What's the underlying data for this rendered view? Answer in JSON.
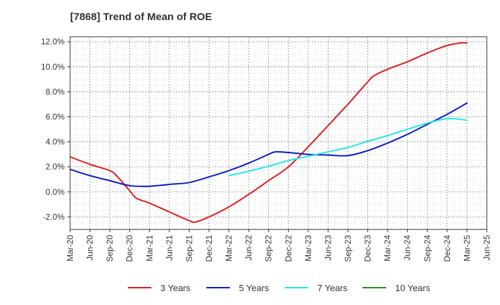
{
  "title": "[7868]  Trend of Mean of ROE",
  "chart_data": {
    "type": "line",
    "title": "[7868]  Trend of Mean of ROE",
    "xlabel": "",
    "ylabel": "",
    "x_ticks": [
      "Mar-20",
      "Jun-20",
      "Sep-20",
      "Dec-20",
      "Mar-21",
      "Jun-21",
      "Sep-21",
      "Dec-21",
      "Mar-22",
      "Jun-22",
      "Sep-22",
      "Dec-22",
      "Mar-23",
      "Jun-23",
      "Sep-23",
      "Dec-23",
      "Mar-24",
      "Jun-24",
      "Sep-24",
      "Dec-24",
      "Mar-25",
      "Jun-25"
    ],
    "y_ticks": [
      "12.0%",
      "10.0%",
      "8.0%",
      "6.0%",
      "4.0%",
      "2.0%",
      "0.0%",
      "-2.0%"
    ],
    "ylim": [
      -3.0,
      12.4
    ],
    "grid": true,
    "legend_position": "bottom",
    "series": [
      {
        "name": "3 Years",
        "color": "#e31a1c",
        "points": [
          [
            "Mar-20",
            2.8
          ],
          [
            "Jun-20",
            2.2
          ],
          [
            "Sep-20",
            1.7
          ],
          [
            "Oct-20",
            1.3
          ],
          [
            "Dec-20",
            0.1
          ],
          [
            "Jan-21",
            -0.5
          ],
          [
            "Mar-21",
            -0.9
          ],
          [
            "Jun-21",
            -1.6
          ],
          [
            "Sep-21",
            -2.3
          ],
          [
            "Oct-21",
            -2.4
          ],
          [
            "Dec-21",
            -2.0
          ],
          [
            "Mar-22",
            -1.2
          ],
          [
            "Jun-22",
            -0.2
          ],
          [
            "Sep-22",
            0.9
          ],
          [
            "Dec-22",
            2.0
          ],
          [
            "Mar-23",
            3.6
          ],
          [
            "Jun-23",
            5.3
          ],
          [
            "Sep-23",
            7.0
          ],
          [
            "Dec-23",
            8.8
          ],
          [
            "Jan-24",
            9.3
          ],
          [
            "Mar-24",
            9.8
          ],
          [
            "Jun-24",
            10.4
          ],
          [
            "Sep-24",
            11.1
          ],
          [
            "Dec-24",
            11.7
          ],
          [
            "Feb-25",
            11.9
          ],
          [
            "Mar-25",
            11.9
          ]
        ]
      },
      {
        "name": "5 Years",
        "color": "#0a1cc8",
        "points": [
          [
            "Mar-20",
            1.8
          ],
          [
            "Jun-20",
            1.3
          ],
          [
            "Sep-20",
            0.9
          ],
          [
            "Dec-20",
            0.5
          ],
          [
            "Mar-21",
            0.45
          ],
          [
            "Jun-21",
            0.6
          ],
          [
            "Sep-21",
            0.75
          ],
          [
            "Dec-21",
            1.2
          ],
          [
            "Mar-22",
            1.7
          ],
          [
            "Jun-22",
            2.3
          ],
          [
            "Sep-22",
            3.0
          ],
          [
            "Oct-22",
            3.2
          ],
          [
            "Dec-22",
            3.15
          ],
          [
            "Mar-23",
            3.0
          ],
          [
            "Jun-23",
            2.95
          ],
          [
            "Sep-23",
            2.9
          ],
          [
            "Dec-23",
            3.3
          ],
          [
            "Mar-24",
            3.9
          ],
          [
            "Jun-24",
            4.6
          ],
          [
            "Sep-24",
            5.4
          ],
          [
            "Dec-24",
            6.2
          ],
          [
            "Mar-25",
            7.1
          ]
        ]
      },
      {
        "name": "7 Years",
        "color": "#22e6ee",
        "points": [
          [
            "Mar-22",
            1.3
          ],
          [
            "Jun-22",
            1.65
          ],
          [
            "Sep-22",
            2.05
          ],
          [
            "Dec-22",
            2.5
          ],
          [
            "Mar-23",
            2.85
          ],
          [
            "Jun-23",
            3.2
          ],
          [
            "Sep-23",
            3.55
          ],
          [
            "Dec-23",
            4.05
          ],
          [
            "Mar-24",
            4.5
          ],
          [
            "Jun-24",
            5.0
          ],
          [
            "Sep-24",
            5.5
          ],
          [
            "Dec-24",
            5.85
          ],
          [
            "Feb-25",
            5.8
          ],
          [
            "Mar-25",
            5.7
          ]
        ]
      },
      {
        "name": "10 Years",
        "color": "#228b22",
        "points": []
      }
    ]
  }
}
